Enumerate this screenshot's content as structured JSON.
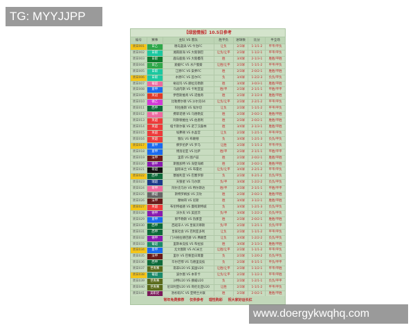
{
  "watermarks": {
    "top": "TG: MYYJJPP",
    "bottom": "www.doergykwqhq.com"
  },
  "title": "【绿茵情报】10.5日参考",
  "headers": [
    "编号",
    "赛事",
    "主队 VS 客队",
    "胜平负",
    "进球数",
    "比分",
    "半全场"
  ],
  "colors": {
    "accent_text": "#c0282a",
    "highlight": "#f5c518",
    "background": "#c8dcc0"
  },
  "rows": [
    {
      "id": "周日001",
      "league": "日乙",
      "color": "#2fa84a",
      "hl": true,
      "match": "德岛漩涡 VS 今治FC",
      "result": "让负",
      "goals": "2/3球",
      "score": "1-1/1-2",
      "half": "平平/平负"
    },
    {
      "id": "周日002",
      "league": "日职",
      "color": "#1cc8a0",
      "hl": false,
      "match": "湘南丽海 VS 大阪钢巴",
      "result": "让负/让平",
      "goals": "2/3球",
      "score": "1-1/2-1",
      "half": "平平/平负"
    },
    {
      "id": "周日003",
      "league": "日职",
      "color": "#0d7a2c",
      "hl": false,
      "match": "鹿岛鹿角 VS 大阪樱花",
      "result": "胜",
      "goals": "3/4球",
      "score": "2-1/3-1",
      "half": "胜胜/平胜"
    },
    {
      "id": "周日004",
      "league": "日乙",
      "color": "#2fa84a",
      "hl": false,
      "match": "爱媛FC VS 水户蜀葵",
      "result": "让胜/让平",
      "goals": "2/3球",
      "score": "1-1/1-2",
      "half": "平平/平负"
    },
    {
      "id": "周日005",
      "league": "日职",
      "color": "#1cc8a0",
      "hl": false,
      "match": "江原FC VS 安养FC",
      "result": "胜",
      "goals": "2/3球",
      "score": "2-0/2-1",
      "half": "胜胜/平胜"
    },
    {
      "id": "周日006",
      "league": "日职",
      "color": "#1cc8a0",
      "hl": true,
      "match": "水原FC VS 首尔FC",
      "result": "负",
      "goals": "3/4球",
      "score": "1-2/2-3",
      "half": "负负/平负"
    },
    {
      "id": "周日007",
      "league": "葡超",
      "color": "#ee6aa0",
      "hl": false,
      "match": "裕逗玛 VS 赫拉克勒斯",
      "result": "胜",
      "goals": "3/4球",
      "score": "3-0/3-1",
      "half": "胜胜/平胜"
    },
    {
      "id": "周日008",
      "league": "意甲",
      "color": "#1a6af0",
      "hl": false,
      "match": "乌迪内斯 VS 卡利亚里",
      "result": "胜/平",
      "goals": "2/3球",
      "score": "2-1/1-1",
      "half": "平胜/平平"
    },
    {
      "id": "周日009",
      "league": "英冠",
      "color": "#e03a2a",
      "hl": false,
      "match": "伊普斯维奇 VS 诺维奇",
      "result": "胜",
      "goals": "2/3球",
      "score": "2-1/2-0",
      "half": "胜胜/平胜"
    },
    {
      "id": "周日010",
      "league": "德乙",
      "color": "#d43ad8",
      "hl": false,
      "match": "比勒费尔德 VS 沙尔克04",
      "result": "让负/让平",
      "goals": "2/3球",
      "score": "2-2/1-2",
      "half": "平平/平负"
    },
    {
      "id": "周日011",
      "league": "西甲",
      "color": "#0d6a3a",
      "hl": false,
      "match": "阿拉维斯 VS 埃尔切",
      "result": "让负",
      "goals": "2/3球",
      "score": "1-1/1-2",
      "half": "平平/平负"
    },
    {
      "id": "周日012",
      "league": "荷甲",
      "color": "#ee6aa0",
      "hl": false,
      "match": "费耶诺德 VS 乌德勒支",
      "result": "胜",
      "goals": "2/3球",
      "score": "2-0/2-1",
      "half": "胜胜/平胜"
    },
    {
      "id": "周日013",
      "league": "英超",
      "color": "#ee3a3a",
      "hl": false,
      "match": "阿斯顿维拉 VS 伯恩利",
      "result": "胜",
      "goals": "2/3球",
      "score": "2-0/2-1",
      "half": "胜胜/平胜"
    },
    {
      "id": "周日014",
      "league": "英超",
      "color": "#ee3a3a",
      "hl": false,
      "match": "纽卡斯尔联 VS 诺丁汉森林",
      "result": "胜",
      "goals": "3/4球",
      "score": "2-1/3-1",
      "half": "胜胜/平胜"
    },
    {
      "id": "周日015",
      "league": "英超",
      "color": "#ee3a3a",
      "hl": false,
      "match": "埃弗顿 VS 水晶宫",
      "result": "让负",
      "goals": "2/3球",
      "score": "1-2/1-1",
      "half": "平平/平负"
    },
    {
      "id": "周日016",
      "league": "英超",
      "color": "#ee3a3a",
      "hl": false,
      "match": "狼队 VS 布赖顿",
      "result": "负",
      "goals": "3/4球",
      "score": "1-2/1-3",
      "half": "负负/平负"
    },
    {
      "id": "周日017",
      "league": "意甲",
      "color": "#1a6af0",
      "hl": true,
      "match": "佛罗伦萨 VS 罗马",
      "result": "让胜",
      "goals": "2/3球",
      "score": "1-1/1-2",
      "half": "平平/平负"
    },
    {
      "id": "周日018",
      "league": "意甲",
      "color": "#1a6af0",
      "hl": false,
      "match": "博洛尼亚 VS 比萨",
      "result": "胜/平",
      "goals": "2/3球",
      "score": "2-1/1-1",
      "half": "平胜/平平"
    },
    {
      "id": "周日019",
      "league": "法甲",
      "color": "#6a1a1a",
      "hl": false,
      "match": "里昂 VS 图卢兹",
      "result": "胜",
      "goals": "2/3球",
      "score": "2-0/2-1",
      "half": "胜胜/平胜"
    },
    {
      "id": "周日020",
      "league": "德甲",
      "color": "#8a1ab0",
      "hl": false,
      "match": "斯图加特 VS 海登海姆",
      "result": "胜",
      "goals": "2/3球",
      "score": "2-0/2-1",
      "half": "胜胜/平胜"
    },
    {
      "id": "周日021",
      "league": "荷超",
      "color": "#111111",
      "hl": false,
      "match": "国际米兰 VS 布雷达",
      "result": "让负/让平",
      "goals": "3/4球",
      "score": "2-2/1-2",
      "half": "平平/平负"
    },
    {
      "id": "周日022",
      "league": "西甲",
      "color": "#0d6a3a",
      "hl": true,
      "match": "塞维利亚 VS 巴塞罗那",
      "result": "负",
      "goals": "2/3球",
      "score": "0-2/1-2",
      "half": "负负/平负"
    },
    {
      "id": "周日023",
      "league": "瑞超",
      "color": "#1a3a8a",
      "hl": false,
      "match": "天狼星 VS 马尔默",
      "result": "负/平",
      "goals": "3/4球",
      "score": "1-2/2-2",
      "half": "负负/平负"
    },
    {
      "id": "周日024",
      "league": "荷甲",
      "color": "#ee6aa0",
      "hl": false,
      "match": "阿尔克马尔 VS 特尔斯达",
      "result": "胜/平",
      "goals": "2/3球",
      "score": "2-1/1-1",
      "half": "平胜/平平"
    },
    {
      "id": "周日025",
      "league": "挪超",
      "color": "#666666",
      "hl": false,
      "match": "斯特罗姆加 VS 汉坎",
      "result": "胜",
      "goals": "2/3球",
      "score": "2-0/2-1",
      "half": "胜胜/平胜"
    },
    {
      "id": "周日026",
      "league": "法甲",
      "color": "#6a1a1a",
      "hl": false,
      "match": "摩纳哥 VS 尼斯",
      "result": "胜",
      "goals": "3/4球",
      "score": "3-1/2-1",
      "half": "胜胜/平胜"
    },
    {
      "id": "周日027",
      "league": "英超",
      "color": "#ee3a3a",
      "hl": true,
      "match": "布伦特福德 VS 曼彻斯特城",
      "result": "负",
      "goals": "3/4球",
      "score": "1-2/1-3",
      "half": "负负/平负"
    },
    {
      "id": "周日028",
      "league": "德甲",
      "color": "#8a1ab0",
      "hl": false,
      "match": "沃尔夫 VS 美因茨",
      "result": "负/平",
      "goals": "3/4球",
      "score": "1-2/2-2",
      "half": "负负/平负"
    },
    {
      "id": "周日029",
      "league": "意甲",
      "color": "#1a6af0",
      "hl": false,
      "match": "那不勒斯 VS 热那亚",
      "result": "胜",
      "goals": "2/3球",
      "score": "2-0/2-1",
      "half": "胜胜/平胜"
    },
    {
      "id": "周日030",
      "league": "西甲",
      "color": "#0d6a3a",
      "hl": false,
      "match": "西班牙人 VS 皇家贝蒂斯",
      "result": "负/平",
      "goals": "2/3球",
      "score": "1-2/1-1",
      "half": "负负/平平"
    },
    {
      "id": "周日031",
      "league": "西甲",
      "color": "#0d6a3a",
      "hl": false,
      "match": "皇家社会 VS 巴利亚多利",
      "result": "让负",
      "goals": "2/3球",
      "score": "1-1/1-2",
      "half": "平平/平负"
    },
    {
      "id": "周日032",
      "league": "德甲",
      "color": "#8a1ab0",
      "hl": false,
      "match": "门兴格拉德巴赫 VS 弗赖堡",
      "result": "让负",
      "goals": "3/4球",
      "score": "1-2/2-2",
      "half": "负负/平负"
    },
    {
      "id": "周日033",
      "league": "葡超",
      "color": "#1a8a6a",
      "hl": false,
      "match": "里斯本竞技 VS 布拉加",
      "result": "胜",
      "goals": "3/4球",
      "score": "2-1/3-1",
      "half": "胜胜/平胜"
    },
    {
      "id": "周日034",
      "league": "意甲",
      "color": "#1a6af0",
      "hl": true,
      "match": "尤文图斯 VS AC米兰",
      "result": "让胜/让平",
      "goals": "2/3球",
      "score": "1-1/1-2",
      "half": "平平/平负"
    },
    {
      "id": "周日035",
      "league": "法甲",
      "color": "#6a1a1a",
      "hl": false,
      "match": "里尔 VS 巴黎圣日耳曼",
      "result": "负",
      "goals": "2/3球",
      "score": "1-2/0-2",
      "half": "负负/平负"
    },
    {
      "id": "周日036",
      "league": "西甲",
      "color": "#0d6a3a",
      "hl": false,
      "match": "毕尔巴鄂 VS 马德里竞技",
      "result": "负",
      "goals": "2/3球",
      "score": "0-1/1-1",
      "half": "平负/平平"
    },
    {
      "id": "周日037",
      "league": "世青赛",
      "color": "#5a6a1a",
      "hl": false,
      "match": "南非U20 VS 美国U20",
      "result": "让胜/让平",
      "goals": "2/3球",
      "score": "1-1/2-1",
      "half": "平平/平胜"
    },
    {
      "id": "周日038",
      "league": "葡超",
      "color": "#1a8a6a",
      "hl": true,
      "match": "波尔图 VS 本菲卡",
      "result": "让负/让平",
      "goals": "2/3球",
      "score": "1-1/2-1",
      "half": "平平/平胜"
    },
    {
      "id": "周日039",
      "league": "世青赛",
      "color": "#5a6a1a",
      "hl": false,
      "match": "沙特U20 VS 挪威U20",
      "result": "负",
      "goals": "2/3球",
      "score": "1-2/1-1",
      "half": "负负/平平"
    },
    {
      "id": "周日040",
      "league": "世青赛",
      "color": "#5a6a1a",
      "hl": false,
      "match": "尼日利亚U20 VS 哥伦比亚U20",
      "result": "让胜",
      "goals": "2/3球",
      "score": "1-1/1-2",
      "half": "平平/平负"
    },
    {
      "id": "周日041",
      "league": "美职足",
      "color": "#7a1a5a",
      "hl": false,
      "match": "洛杉矶FC VS 亚特兰大联",
      "result": "胜",
      "goals": "2/3球",
      "score": "2-0/2-1",
      "half": "胜胜/平胜"
    }
  ],
  "footer": "常年免费推荐 仅供参考 理性购彩 祝大家好运长红"
}
